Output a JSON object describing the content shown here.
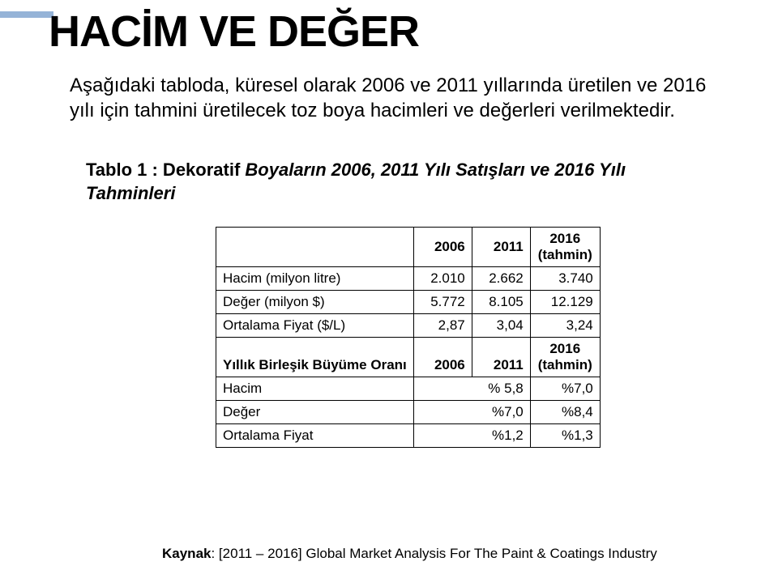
{
  "title": "HACİM VE DEĞER",
  "intro": "Aşağıdaki tabloda, küresel olarak 2006 ve 2011 yıllarında üretilen ve 2016 yılı için tahmini üretilecek toz boya hacimleri ve değerleri verilmektedir.",
  "caption_prefix": "Tablo 1 : Dekoratif ",
  "caption_italic": "Boyaların 2006, 2011 Yılı Satışları ve 2016 Yılı Tahminleri",
  "table": {
    "header": {
      "col_a": "2006",
      "col_b": "2011",
      "col_c_top": "2016",
      "col_c_bot": "(tahmin)"
    },
    "part1": {
      "rows": [
        {
          "label": "Hacim (milyon litre)",
          "a": "2.010",
          "b": "2.662",
          "c": "3.740"
        },
        {
          "label": "Değer (milyon $)",
          "a": "5.772",
          "b": "8.105",
          "c": "12.129"
        },
        {
          "label": "Ortalama Fiyat ($/L)",
          "a": "2,87",
          "b": "3,04",
          "c": "3,24"
        }
      ]
    },
    "mid_header": {
      "label": "Yıllık Birleşik Büyüme Oranı",
      "a": "2006",
      "b": "2011",
      "c_top": "2016",
      "c_bot": "(tahmin)"
    },
    "part2": {
      "rows": [
        {
          "label": "Hacim",
          "b": "% 5,8",
          "c": "%7,0"
        },
        {
          "label": "Değer",
          "b": "%7,0",
          "c": "%8,4"
        },
        {
          "label": "Ortalama Fiyat",
          "b": "%1,2",
          "c": "%1,3"
        }
      ]
    }
  },
  "source": {
    "label": "Kaynak",
    "text": ": [2011 – 2016] Global Market Analysis For The Paint & Coatings Industry"
  }
}
